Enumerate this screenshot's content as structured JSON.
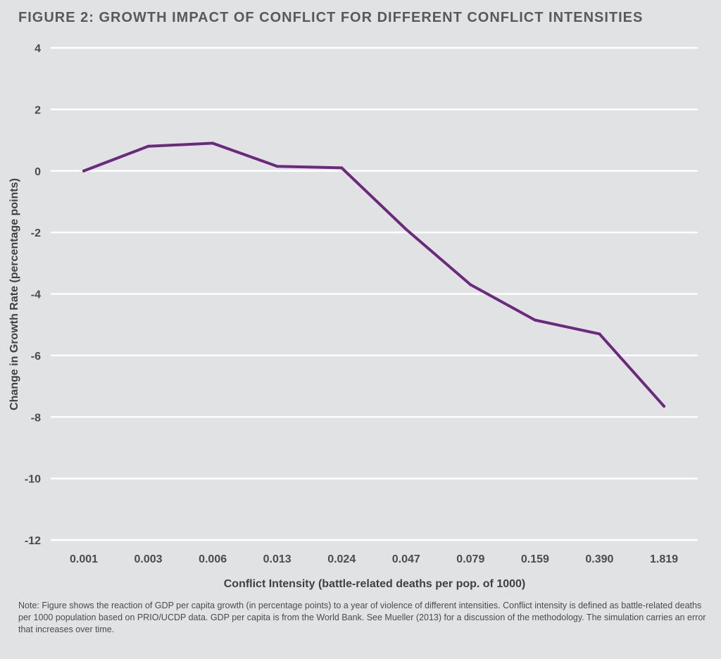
{
  "figure": {
    "title": "FIGURE 2: GROWTH IMPACT OF CONFLICT FOR DIFFERENT CONFLICT INTENSITIES",
    "note": "Note: Figure shows the reaction of GDP per capita growth (in percentage points) to a year of violence of different intensities. Conflict intensity is defined as battle-related deaths per 1000 population based on PRIO/UCDP data. GDP per capita is from the World Bank. See Mueller (2013) for a discussion of the methodology. The simulation carries an error that increases over time."
  },
  "colors": {
    "background": "#e1e2e4",
    "gridline": "#ffffff",
    "series": "#6b2a7d",
    "text": "#4a4b4d"
  },
  "chart_data": {
    "type": "line",
    "title": "FIGURE 2: GROWTH IMPACT OF CONFLICT FOR DIFFERENT CONFLICT INTENSITIES",
    "xlabel": "Conflict Intensity (battle-related deaths per pop. of 1000)",
    "ylabel": "Change in Growth Rate  (percentage points)",
    "categories": [
      "0.001",
      "0.003",
      "0.006",
      "0.013",
      "0.024",
      "0.047",
      "0.079",
      "0.159",
      "0.390",
      "1.819"
    ],
    "series": [
      {
        "values": [
          0.0,
          0.8,
          0.9,
          0.15,
          0.1,
          -1.9,
          -3.7,
          -4.85,
          -5.3,
          -7.65
        ]
      }
    ],
    "ylim": [
      -12,
      4
    ],
    "yticks": [
      4,
      2,
      0,
      -2,
      -4,
      -6,
      -8,
      -10,
      -12
    ],
    "ytick_labels": [
      "4",
      "2",
      "0",
      "-2",
      "-4",
      "-6",
      "-8",
      "-10",
      "-12"
    ],
    "grid": true,
    "legend": "none"
  }
}
